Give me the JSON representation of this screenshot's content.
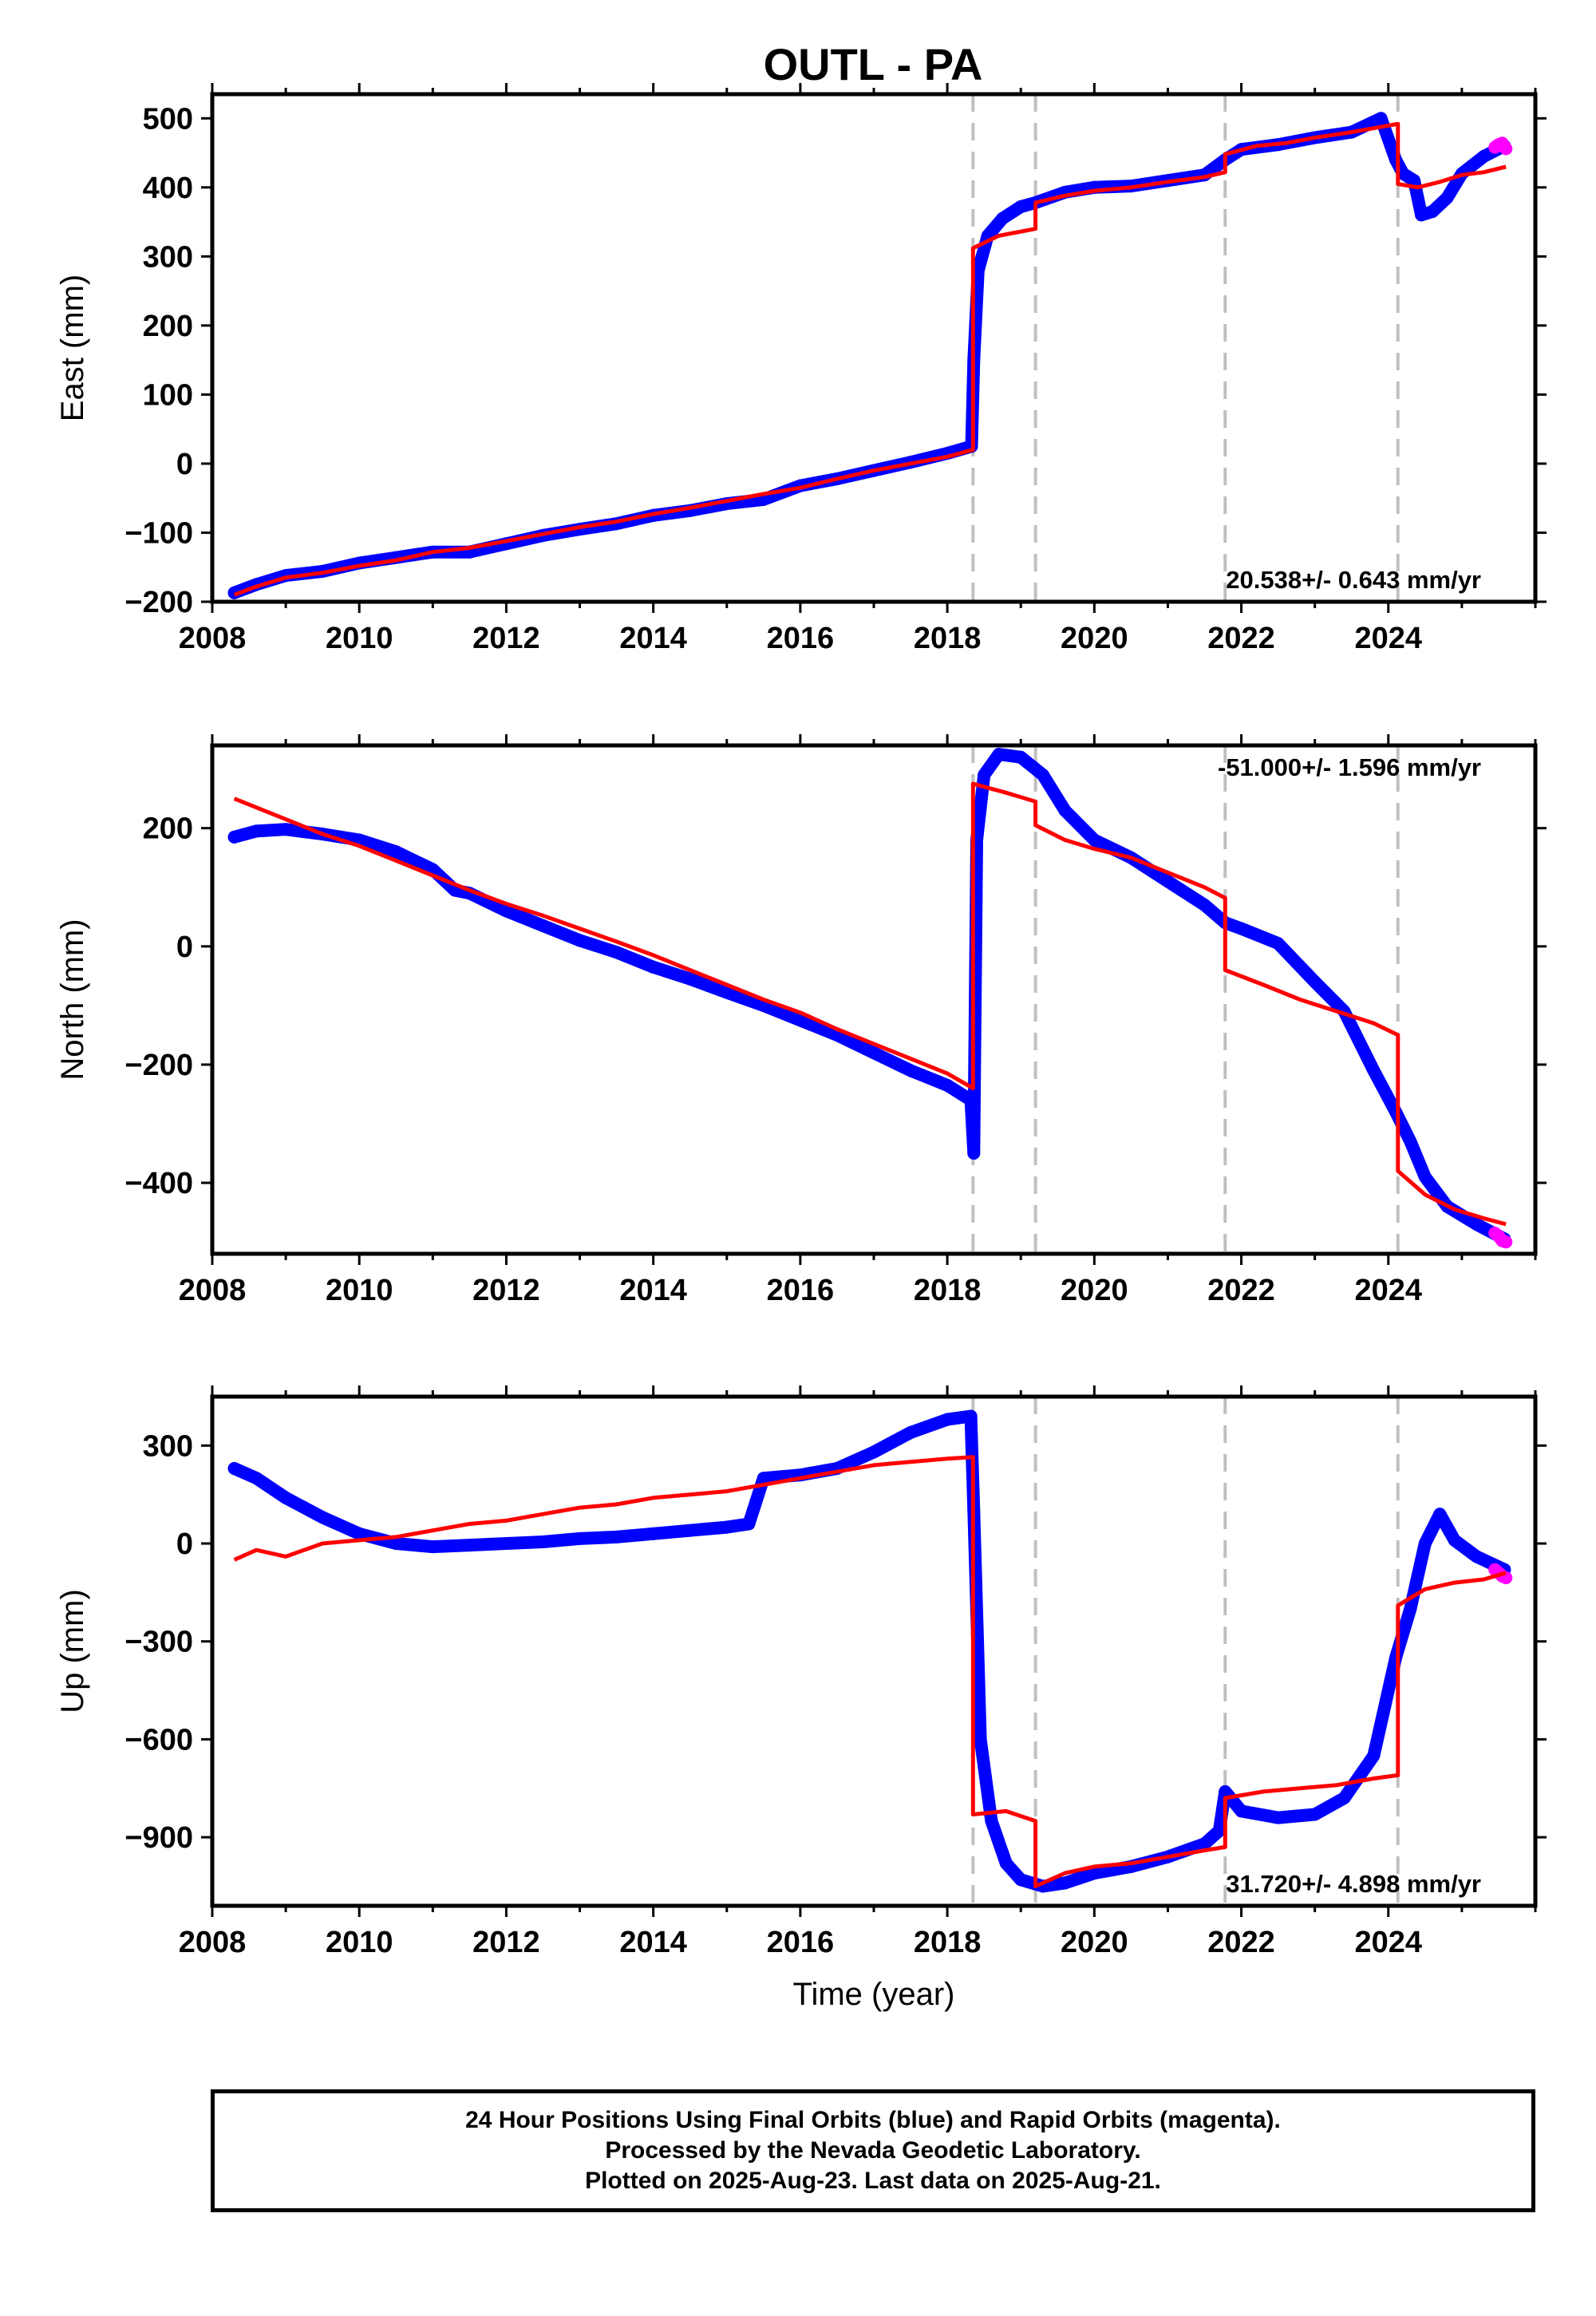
{
  "title": "OUTL - PA",
  "colors": {
    "final_orbits": "#0000ff",
    "rapid_orbits": "#ff00ff",
    "model": "#ff0000",
    "event_lines": "#c0c0c0",
    "frame": "#000000"
  },
  "chart_data": [
    {
      "type": "scatter",
      "component": "East",
      "ylabel": "East (mm)",
      "xlabel": "",
      "xlim": [
        2008,
        2026.0
      ],
      "ylim": [
        -200,
        535
      ],
      "x_ticks": [
        2008,
        2010,
        2012,
        2014,
        2016,
        2018,
        2020,
        2022,
        2024
      ],
      "y_ticks": [
        -200,
        -100,
        0,
        100,
        200,
        300,
        400,
        500
      ],
      "rate_label": "20.538+/- 0.643 mm/yr",
      "event_lines": [
        2018.35,
        2019.2,
        2021.78,
        2024.13
      ],
      "series": [
        {
          "name": "Final Orbits (blue)",
          "x": [
            2008.3,
            2008.6,
            2009.0,
            2009.5,
            2010.0,
            2010.5,
            2011.0,
            2011.5,
            2012.0,
            2012.5,
            2013.0,
            2013.5,
            2014.0,
            2014.5,
            2015.0,
            2015.5,
            2016.0,
            2016.5,
            2017.0,
            2017.5,
            2018.0,
            2018.33,
            2018.36,
            2018.42,
            2018.55,
            2018.75,
            2019.0,
            2019.2,
            2019.6,
            2020.0,
            2020.5,
            2021.0,
            2021.5,
            2021.78,
            2022.0,
            2022.5,
            2023.0,
            2023.5,
            2023.9,
            2024.1,
            2024.2,
            2024.35,
            2024.45,
            2024.6,
            2024.8,
            2025.0,
            2025.3,
            2025.58
          ],
          "y": [
            -187,
            -175,
            -162,
            -156,
            -144,
            -136,
            -128,
            -128,
            -116,
            -104,
            -95,
            -87,
            -75,
            -68,
            -58,
            -52,
            -32,
            -22,
            -10,
            2,
            15,
            25,
            150,
            280,
            330,
            355,
            372,
            378,
            393,
            400,
            402,
            410,
            418,
            440,
            455,
            462,
            472,
            480,
            500,
            440,
            420,
            410,
            360,
            365,
            385,
            420,
            445,
            460
          ]
        },
        {
          "name": "Rapid Orbits (magenta)",
          "x": [
            2025.45,
            2025.5,
            2025.55,
            2025.6
          ],
          "y": [
            458,
            462,
            464,
            456
          ]
        },
        {
          "name": "Model",
          "x": [
            2008.3,
            2008.6,
            2009.0,
            2009.5,
            2010.0,
            2010.5,
            2011.0,
            2011.5,
            2012.0,
            2012.5,
            2013.0,
            2013.5,
            2014.0,
            2014.5,
            2015.0,
            2015.5,
            2016.0,
            2016.5,
            2017.0,
            2017.5,
            2018.0,
            2018.35,
            2018.35,
            2018.7,
            2019.2,
            2019.2,
            2019.6,
            2020.0,
            2020.5,
            2021.0,
            2021.5,
            2021.78,
            2021.78,
            2022.2,
            2022.6,
            2023.0,
            2023.5,
            2024.13,
            2024.13,
            2024.4,
            2024.7,
            2025.0,
            2025.3,
            2025.6
          ],
          "y": [
            -190,
            -178,
            -165,
            -158,
            -148,
            -140,
            -128,
            -122,
            -112,
            -102,
            -92,
            -84,
            -73,
            -64,
            -54,
            -44,
            -35,
            -22,
            -10,
            0,
            10,
            20,
            312,
            330,
            340,
            378,
            388,
            395,
            400,
            408,
            415,
            422,
            448,
            460,
            464,
            472,
            480,
            492,
            405,
            400,
            408,
            418,
            422,
            430
          ]
        }
      ]
    },
    {
      "type": "scatter",
      "component": "North",
      "ylabel": "North (mm)",
      "xlabel": "",
      "xlim": [
        2008,
        2026.0
      ],
      "ylim": [
        -520,
        340
      ],
      "x_ticks": [
        2008,
        2010,
        2012,
        2014,
        2016,
        2018,
        2020,
        2022,
        2024
      ],
      "y_ticks": [
        -400,
        -200,
        0,
        200
      ],
      "rate_label": "-51.000+/- 1.596 mm/yr",
      "event_lines": [
        2018.35,
        2019.2,
        2021.78,
        2024.13
      ],
      "series": [
        {
          "name": "Final Orbits (blue)",
          "x": [
            2008.3,
            2008.6,
            2009.0,
            2009.5,
            2010.0,
            2010.5,
            2011.0,
            2011.3,
            2011.5,
            2012.0,
            2012.5,
            2013.0,
            2013.5,
            2014.0,
            2014.5,
            2015.0,
            2015.5,
            2016.0,
            2016.5,
            2017.0,
            2017.5,
            2018.0,
            2018.32,
            2018.36,
            2018.4,
            2018.5,
            2018.7,
            2019.0,
            2019.3,
            2019.6,
            2020.0,
            2020.5,
            2021.0,
            2021.5,
            2021.78,
            2022.0,
            2022.5,
            2023.0,
            2023.4,
            2023.8,
            2024.1,
            2024.3,
            2024.5,
            2024.8,
            2025.2,
            2025.58
          ],
          "y": [
            185,
            195,
            198,
            190,
            180,
            160,
            130,
            95,
            90,
            60,
            35,
            10,
            -10,
            -35,
            -55,
            -78,
            -100,
            -125,
            -150,
            -180,
            -210,
            -235,
            -260,
            -350,
            180,
            290,
            325,
            320,
            290,
            230,
            180,
            150,
            110,
            70,
            40,
            30,
            5,
            -60,
            -110,
            -210,
            -280,
            -330,
            -390,
            -440,
            -470,
            -495
          ]
        },
        {
          "name": "Rapid Orbits (magenta)",
          "x": [
            2025.45,
            2025.5,
            2025.55,
            2025.6
          ],
          "y": [
            -485,
            -490,
            -498,
            -500
          ]
        },
        {
          "name": "Model",
          "x": [
            2008.3,
            2008.6,
            2009.0,
            2009.5,
            2010.0,
            2010.5,
            2011.0,
            2011.5,
            2012.0,
            2012.5,
            2013.0,
            2013.5,
            2014.0,
            2014.5,
            2015.0,
            2015.5,
            2016.0,
            2016.5,
            2017.0,
            2017.5,
            2018.0,
            2018.35,
            2018.35,
            2018.8,
            2019.2,
            2019.2,
            2019.6,
            2020.0,
            2020.5,
            2021.0,
            2021.5,
            2021.78,
            2021.78,
            2022.3,
            2022.8,
            2023.3,
            2023.8,
            2024.13,
            2024.13,
            2024.5,
            2024.9,
            2025.3,
            2025.6
          ],
          "y": [
            250,
            235,
            215,
            190,
            170,
            145,
            120,
            95,
            72,
            52,
            30,
            8,
            -15,
            -40,
            -65,
            -90,
            -112,
            -140,
            -165,
            -190,
            -215,
            -240,
            275,
            260,
            245,
            205,
            180,
            165,
            150,
            125,
            100,
            82,
            -40,
            -65,
            -90,
            -110,
            -130,
            -150,
            -380,
            -420,
            -445,
            -460,
            -470
          ]
        }
      ]
    },
    {
      "type": "scatter",
      "component": "Up",
      "ylabel": "Up (mm)",
      "xlabel": "Time (year)",
      "xlim": [
        2008,
        2026.0
      ],
      "ylim": [
        -1110,
        450
      ],
      "x_ticks": [
        2008,
        2010,
        2012,
        2014,
        2016,
        2018,
        2020,
        2022,
        2024
      ],
      "y_ticks": [
        -900,
        -600,
        -300,
        0,
        300
      ],
      "rate_label": "31.720+/- 4.898 mm/yr",
      "event_lines": [
        2018.35,
        2019.2,
        2021.78,
        2024.13
      ],
      "series": [
        {
          "name": "Final Orbits (blue)",
          "x": [
            2008.3,
            2008.6,
            2009.0,
            2009.5,
            2010.0,
            2010.5,
            2011.0,
            2011.5,
            2012.0,
            2012.5,
            2013.0,
            2013.5,
            2014.0,
            2014.5,
            2015.0,
            2015.3,
            2015.5,
            2016.0,
            2016.5,
            2017.0,
            2017.5,
            2018.0,
            2018.32,
            2018.36,
            2018.45,
            2018.6,
            2018.8,
            2019.0,
            2019.3,
            2019.6,
            2020.0,
            2020.5,
            2021.0,
            2021.5,
            2021.7,
            2021.78,
            2022.0,
            2022.5,
            2023.0,
            2023.4,
            2023.8,
            2024.1,
            2024.3,
            2024.5,
            2024.7,
            2024.9,
            2025.2,
            2025.58
          ],
          "y": [
            230,
            200,
            140,
            80,
            30,
            0,
            -10,
            -5,
            0,
            5,
            15,
            20,
            30,
            40,
            50,
            60,
            200,
            210,
            230,
            280,
            340,
            380,
            390,
            100,
            -600,
            -850,
            -980,
            -1030,
            -1050,
            -1040,
            -1010,
            -990,
            -960,
            -920,
            -880,
            -760,
            -820,
            -840,
            -830,
            -780,
            -650,
            -350,
            -200,
            0,
            90,
            10,
            -40,
            -80
          ]
        },
        {
          "name": "Rapid Orbits (magenta)",
          "x": [
            2025.45,
            2025.5,
            2025.55,
            2025.6
          ],
          "y": [
            -80,
            -90,
            -100,
            -105
          ]
        },
        {
          "name": "Model",
          "x": [
            2008.3,
            2008.6,
            2009.0,
            2009.5,
            2010.0,
            2010.5,
            2011.0,
            2011.5,
            2012.0,
            2012.5,
            2013.0,
            2013.5,
            2014.0,
            2014.5,
            2015.0,
            2015.5,
            2016.0,
            2016.5,
            2017.0,
            2017.5,
            2018.0,
            2018.35,
            2018.35,
            2018.8,
            2019.2,
            2019.2,
            2019.6,
            2020.0,
            2020.5,
            2021.0,
            2021.5,
            2021.78,
            2021.78,
            2022.3,
            2022.8,
            2023.3,
            2023.8,
            2024.13,
            2024.13,
            2024.5,
            2024.9,
            2025.3,
            2025.6
          ],
          "y": [
            -50,
            -20,
            -40,
            0,
            10,
            20,
            40,
            60,
            70,
            90,
            110,
            120,
            140,
            150,
            160,
            180,
            200,
            220,
            240,
            250,
            260,
            265,
            -830,
            -820,
            -850,
            -1050,
            -1010,
            -990,
            -980,
            -960,
            -940,
            -930,
            -780,
            -760,
            -750,
            -740,
            -720,
            -710,
            -190,
            -140,
            -120,
            -110,
            -90
          ]
        }
      ]
    }
  ],
  "footer": {
    "line1": "24 Hour Positions Using Final Orbits (blue) and Rapid Orbits (magenta).",
    "line2": "Processed by the Nevada Geodetic Laboratory.",
    "line3": "Plotted on 2025-Aug-23. Last data on 2025-Aug-21."
  }
}
